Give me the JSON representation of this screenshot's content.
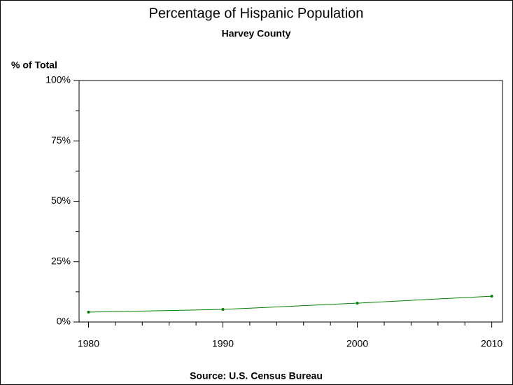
{
  "chart_data": {
    "type": "line",
    "title": "Percentage of Hispanic Population",
    "subtitle": "Harvey County",
    "y_label": "% of Total",
    "source": "Source: U.S. Census Bureau",
    "x": [
      1980,
      1990,
      2000,
      2010
    ],
    "series": [
      {
        "color": "#008000",
        "values": [
          4.1,
          5.2,
          7.8,
          10.7
        ]
      }
    ],
    "xlim": [
      1979.3,
      2010.8
    ],
    "xticks": [
      1980,
      1990,
      2000,
      2010
    ],
    "ylim": [
      0,
      100
    ],
    "yticks": [
      {
        "value": 0,
        "label": "0%"
      },
      {
        "value": 25,
        "label": "25%"
      },
      {
        "value": 50,
        "label": "50%"
      },
      {
        "value": 75,
        "label": "75%"
      },
      {
        "value": 100,
        "label": "100%"
      }
    ],
    "grid": false
  }
}
